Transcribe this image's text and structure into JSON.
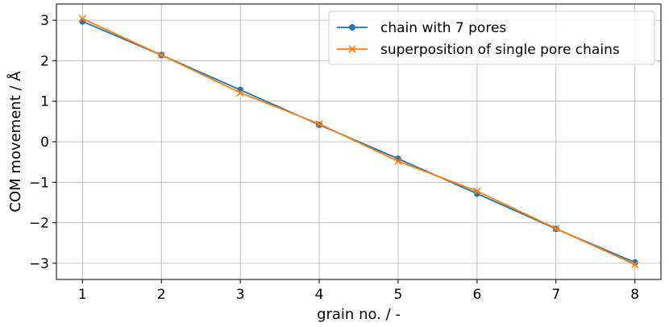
{
  "chart_data": {
    "type": "line",
    "title": "",
    "xlabel": "grain no. / -",
    "ylabel": "COM movement / Å",
    "x": [
      1,
      2,
      3,
      4,
      5,
      6,
      7,
      8
    ],
    "xticks": [
      "1",
      "2",
      "3",
      "4",
      "5",
      "6",
      "7",
      "8"
    ],
    "yticks": [
      "3",
      "2",
      "1",
      "0",
      "−1",
      "−2",
      "−3"
    ],
    "xlim": [
      0.67,
      8.33
    ],
    "ylim": [
      -3.4,
      3.4
    ],
    "grid": true,
    "legend_position": "upper right",
    "series": [
      {
        "name": "chain with 7 pores",
        "color": "#1f77b4",
        "marker": "circle",
        "values": [
          2.97,
          2.14,
          1.28,
          0.42,
          -0.42,
          -1.28,
          -2.15,
          -2.98
        ]
      },
      {
        "name": "superposition of single pore chains",
        "color": "#ff7f0e",
        "marker": "x",
        "values": [
          3.04,
          2.14,
          1.21,
          0.44,
          -0.48,
          -1.22,
          -2.14,
          -3.03
        ]
      }
    ]
  }
}
